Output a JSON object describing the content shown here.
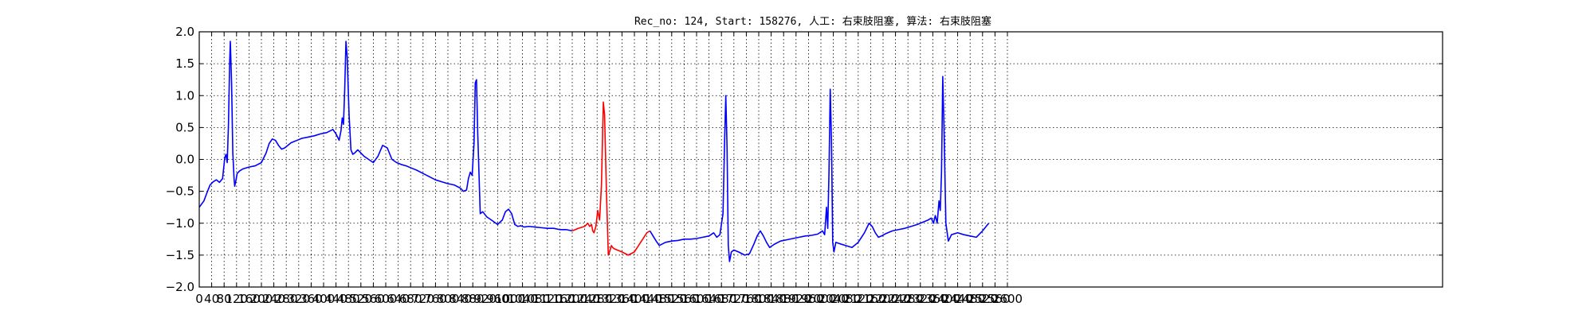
{
  "chart_data": {
    "type": "line",
    "title": "Rec_no: 124, Start: 158276, 人工: 右束肢阻塞, 算法: 右束肢阻塞",
    "xlabel": "",
    "ylabel": "",
    "xlim": [
      0,
      4000
    ],
    "ylim": [
      -2.0,
      2.0
    ],
    "grid": true,
    "x_tick_values": [
      0,
      40,
      80,
      120,
      160,
      200,
      240,
      280,
      320,
      360,
      400,
      440,
      480,
      520,
      560,
      600,
      640,
      680,
      720,
      760,
      800,
      840,
      880,
      920,
      960,
      1000,
      1040,
      1080,
      1120,
      1160,
      1200,
      1240,
      1280,
      1320,
      1360,
      1400,
      1440,
      1480,
      1520,
      1560,
      1600,
      1640,
      1680,
      1720,
      1760,
      1800,
      1840,
      1880,
      1920,
      1960,
      2000,
      2040,
      2080,
      2120,
      2160,
      2200,
      2240,
      2280,
      2320,
      2360,
      2400,
      2440,
      2480,
      2520,
      2560,
      2600
    ],
    "y_ticks": [
      "2.0",
      "1.5",
      "1.0",
      "0.5",
      "0.0",
      "−0.5",
      "−1.0",
      "−1.5",
      "−2.0"
    ],
    "y_tick_values": [
      2.0,
      1.5,
      1.0,
      0.5,
      0.0,
      -0.5,
      -1.0,
      -1.5,
      -2.0
    ],
    "series": [
      {
        "color": "#0000ff",
        "x": [
          0,
          15,
          25,
          35,
          45,
          55,
          65,
          75,
          82,
          86,
          90,
          94,
          98,
          100,
          104,
          108,
          112,
          114,
          118,
          122,
          126,
          130,
          140,
          160,
          180,
          200,
          215,
          225,
          235,
          245,
          255,
          265,
          275,
          285,
          295,
          305,
          315,
          330,
          350,
          370,
          390,
          410,
          430,
          440,
          450,
          456,
          460,
          464,
          468,
          472,
          476,
          482,
          488,
          494,
          500,
          510,
          520,
          530,
          545,
          560,
          575,
          590,
          605,
          620,
          635,
          650,
          665,
          680,
          700,
          720,
          740,
          760,
          780,
          800,
          820,
          840,
          850,
          860,
          866,
          872,
          878,
          884,
          888,
          892,
          896,
          904,
          912,
          925,
          940,
          960,
          975,
          985,
          995,
          1005,
          1015,
          1025,
          1035,
          1045,
          1060,
          1080,
          1100,
          1120,
          1140,
          1160,
          1180,
          1200
        ],
        "y": [
          -0.75,
          -0.65,
          -0.52,
          -0.4,
          -0.35,
          -0.32,
          -0.36,
          -0.3,
          0.02,
          0.08,
          -0.05,
          0.55,
          1.55,
          1.85,
          1.2,
          0.1,
          -0.3,
          -0.42,
          -0.33,
          -0.22,
          -0.2,
          -0.18,
          -0.15,
          -0.12,
          -0.1,
          -0.05,
          0.1,
          0.25,
          0.32,
          0.3,
          0.22,
          0.16,
          0.18,
          0.22,
          0.26,
          0.28,
          0.3,
          0.33,
          0.35,
          0.37,
          0.4,
          0.42,
          0.47,
          0.4,
          0.3,
          0.45,
          0.65,
          0.55,
          1.1,
          1.85,
          1.6,
          0.7,
          0.15,
          0.08,
          0.1,
          0.15,
          0.1,
          0.05,
          0.0,
          -0.05,
          0.05,
          0.22,
          0.18,
          0.0,
          -0.05,
          -0.08,
          -0.1,
          -0.13,
          -0.17,
          -0.22,
          -0.27,
          -0.32,
          -0.35,
          -0.38,
          -0.4,
          -0.45,
          -0.5,
          -0.48,
          -0.3,
          -0.2,
          -0.25,
          0.25,
          1.2,
          1.25,
          0.4,
          -0.85,
          -0.82,
          -0.9,
          -0.95,
          -1.02,
          -0.95,
          -0.82,
          -0.78,
          -0.85,
          -1.02,
          -1.05,
          -1.04,
          -1.06,
          -1.05,
          -1.06,
          -1.07,
          -1.08,
          -1.08,
          -1.1,
          -1.1,
          -1.12
        ]
      },
      {
        "color": "#ff0000",
        "x": [
          1200,
          1220,
          1240,
          1250,
          1256,
          1262,
          1266,
          1270,
          1276,
          1282,
          1288,
          1294,
          1300,
          1304,
          1310,
          1316,
          1320,
          1326,
          1330,
          1335,
          1345,
          1360,
          1380,
          1400,
          1420,
          1440,
          1450
        ],
        "y": [
          -1.12,
          -1.08,
          -1.05,
          -1.0,
          -1.05,
          -1.02,
          -1.12,
          -1.15,
          -1.05,
          -0.8,
          -0.95,
          -0.4,
          0.9,
          0.7,
          -0.5,
          -1.5,
          -1.45,
          -1.35,
          -1.38,
          -1.4,
          -1.42,
          -1.45,
          -1.5,
          -1.45,
          -1.3,
          -1.15,
          -1.12
        ]
      },
      {
        "color": "#0000ff",
        "x": [
          1450,
          1460,
          1470,
          1480,
          1500,
          1520,
          1540,
          1560,
          1580,
          1600,
          1620,
          1640,
          1655,
          1665,
          1675,
          1685,
          1690,
          1694,
          1698,
          1702,
          1706,
          1712,
          1720,
          1735,
          1755,
          1770,
          1785,
          1795,
          1805,
          1815,
          1825,
          1835,
          1850,
          1870,
          1890,
          1910,
          1930,
          1950,
          1970,
          1990,
          2005,
          2012,
          2018,
          2022,
          2026,
          2030,
          2034,
          2038,
          2042,
          2048,
          2060,
          2080,
          2100,
          2120,
          2140,
          2155,
          2165,
          2175,
          2185,
          2195,
          2210,
          2230,
          2250,
          2270,
          2290,
          2310,
          2330,
          2345,
          2355,
          2362,
          2368,
          2374,
          2380,
          2384,
          2388,
          2392,
          2396,
          2402,
          2410,
          2420,
          2440,
          2460,
          2480,
          2500,
          2520,
          2540
        ],
        "y": [
          -1.12,
          -1.2,
          -1.28,
          -1.35,
          -1.3,
          -1.28,
          -1.27,
          -1.25,
          -1.25,
          -1.24,
          -1.22,
          -1.2,
          -1.15,
          -1.22,
          -1.18,
          -0.85,
          0.25,
          1.0,
          0.2,
          -1.35,
          -1.6,
          -1.45,
          -1.42,
          -1.45,
          -1.5,
          -1.48,
          -1.32,
          -1.2,
          -1.12,
          -1.2,
          -1.3,
          -1.38,
          -1.33,
          -1.28,
          -1.26,
          -1.24,
          -1.22,
          -1.2,
          -1.19,
          -1.17,
          -1.12,
          -1.18,
          -0.75,
          -1.08,
          -0.2,
          1.1,
          0.3,
          -1.3,
          -1.45,
          -1.3,
          -1.32,
          -1.35,
          -1.38,
          -1.3,
          -1.15,
          -1.0,
          -1.05,
          -1.15,
          -1.22,
          -1.2,
          -1.16,
          -1.12,
          -1.1,
          -1.08,
          -1.05,
          -1.02,
          -0.98,
          -0.95,
          -0.92,
          -1.0,
          -0.88,
          -1.0,
          -0.65,
          -0.8,
          -0.2,
          1.3,
          0.5,
          -1.0,
          -1.28,
          -1.18,
          -1.15,
          -1.18,
          -1.2,
          -1.22,
          -1.12,
          -1.0
        ]
      }
    ]
  }
}
